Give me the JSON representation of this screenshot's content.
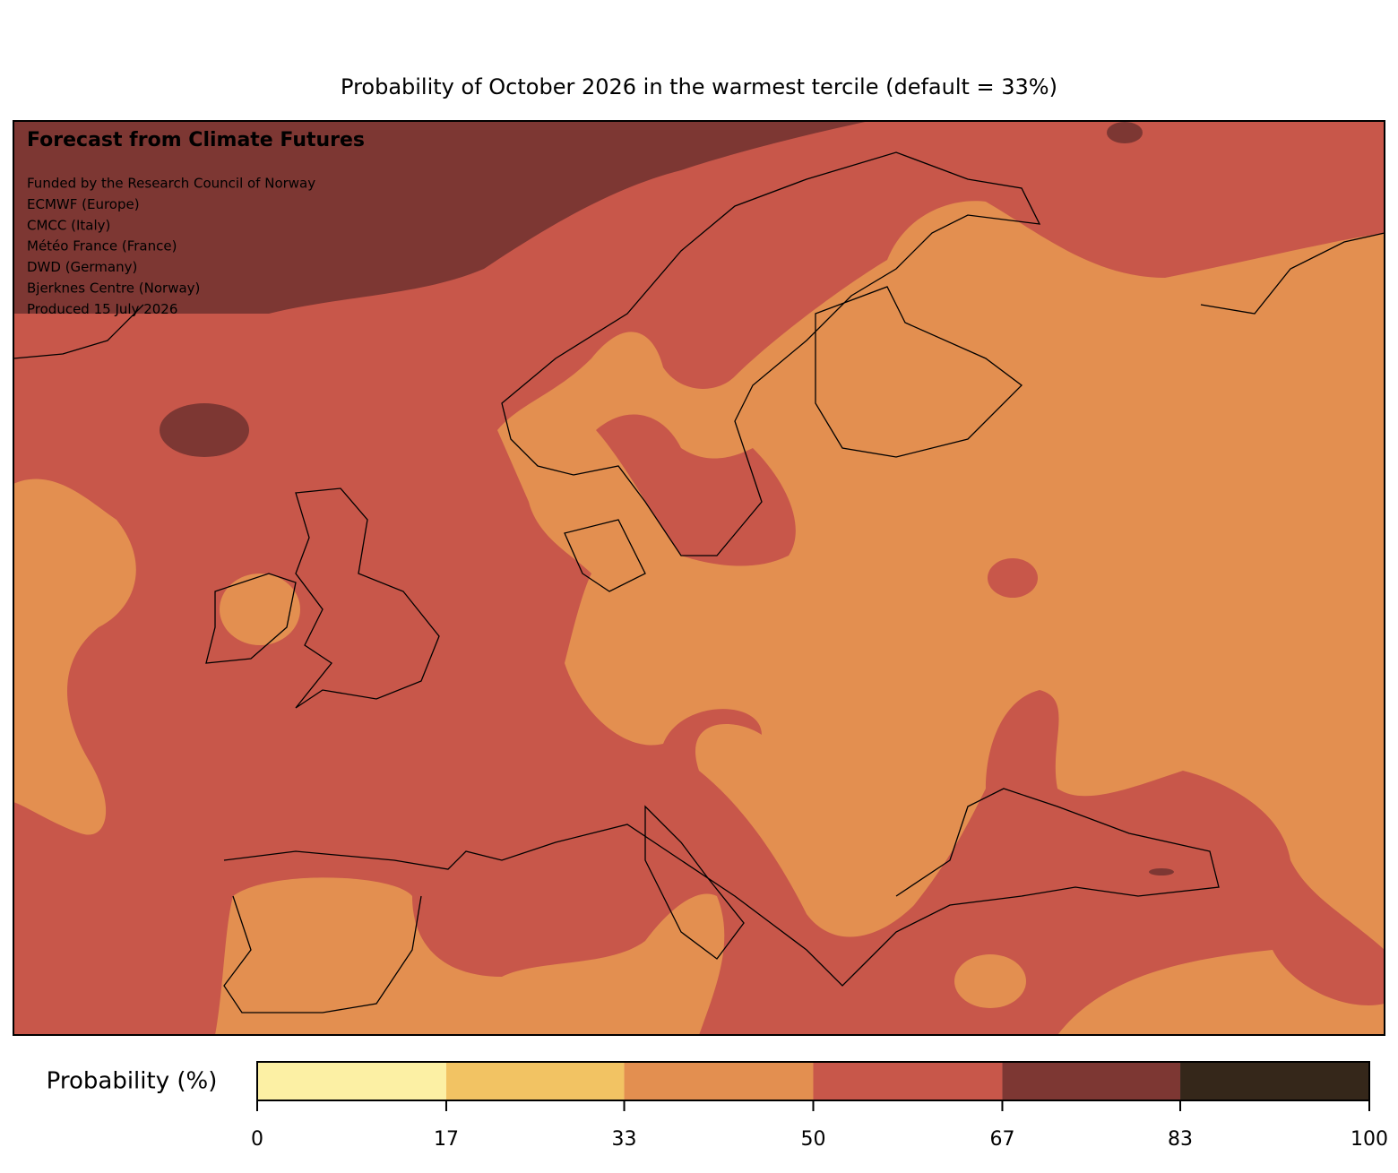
{
  "chart_data": {
    "type": "map",
    "title": "Probability of October 2026 in the warmest tercile (default = 33%)",
    "annotation": {
      "heading": "Forecast from Climate Futures",
      "lines": [
        "Funded by the Research Council of Norway",
        "ECMWF (Europe)",
        "CMCC (Italy)",
        "Météo France (France)",
        "DWD (Germany)",
        "Bjerknes Centre (Norway)",
        "Produced 15 July 2026"
      ]
    },
    "colorbar": {
      "label": "Probability (%)",
      "lim": [
        0,
        100
      ],
      "ticks": [
        0,
        17,
        33,
        50,
        67,
        83,
        100
      ],
      "colors": [
        "#fcf0a4",
        "#f2c363",
        "#e38f50",
        "#c8574a",
        "#7d3733",
        "#35271a"
      ]
    }
  }
}
